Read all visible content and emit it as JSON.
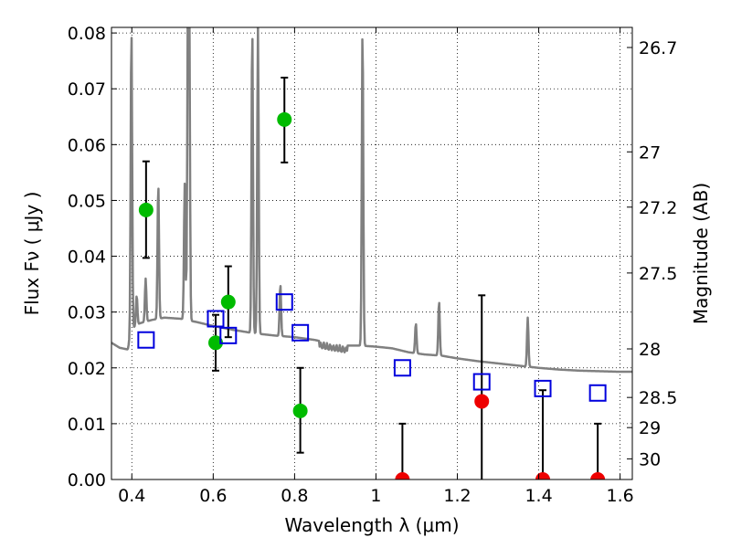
{
  "chart_data": {
    "type": "scatter",
    "title": "",
    "xlabel": "Wavelength  λ (μm)",
    "ylabel": "Flux  Fν  ( μJy )",
    "y2label": "Magnitude (AB)",
    "xlim": [
      0.35,
      1.63
    ],
    "ylim": [
      0.0,
      0.081
    ],
    "grid": true,
    "x_ticks": [
      0.4,
      0.6,
      0.8,
      1.0,
      1.2,
      1.4,
      1.6
    ],
    "x_tick_labels": [
      "0.4",
      "0.6",
      "0.8",
      "1",
      "1.2",
      "1.4",
      "1.6"
    ],
    "y_ticks": [
      0.0,
      0.01,
      0.02,
      0.03,
      0.04,
      0.05,
      0.06,
      0.07,
      0.08
    ],
    "y_tick_labels": [
      "0.00",
      "0.01",
      "0.02",
      "0.03",
      "0.04",
      "0.05",
      "0.06",
      "0.07",
      "0.08"
    ],
    "y2_ticks": [
      {
        "label": "26.7",
        "flux": 0.0774
      },
      {
        "label": "27",
        "flux": 0.0587
      },
      {
        "label": "27.2",
        "flux": 0.0488
      },
      {
        "label": "27.5",
        "flux": 0.037
      },
      {
        "label": "28",
        "flux": 0.0234
      },
      {
        "label": "28.5",
        "flux": 0.0147
      },
      {
        "label": "29",
        "flux": 0.0093
      },
      {
        "label": "30",
        "flux": 0.0037
      }
    ],
    "series": [
      {
        "marker": "circle",
        "color": "#00bb00",
        "points": [
          {
            "x": 0.435,
            "y": 0.0483,
            "err_low": 0.0397,
            "err_high": 0.057
          },
          {
            "x": 0.606,
            "y": 0.0245,
            "err_low": 0.0195,
            "err_high": 0.0295
          },
          {
            "x": 0.637,
            "y": 0.0318,
            "err_low": 0.0255,
            "err_high": 0.0382
          },
          {
            "x": 0.775,
            "y": 0.0645,
            "err_low": 0.0568,
            "err_high": 0.072
          },
          {
            "x": 0.814,
            "y": 0.0123,
            "err_low": 0.0048,
            "err_high": 0.02
          }
        ]
      },
      {
        "marker": "circle",
        "color": "#ee0000",
        "points": [
          {
            "x": 1.065,
            "y": 0.0,
            "err_low": 0.0,
            "err_high": 0.01
          },
          {
            "x": 1.26,
            "y": 0.014,
            "err_low": 0.0,
            "err_high": 0.033
          },
          {
            "x": 1.41,
            "y": 0.0,
            "err_low": 0.0,
            "err_high": 0.016
          },
          {
            "x": 1.545,
            "y": 0.0,
            "err_low": 0.0,
            "err_high": 0.01
          }
        ]
      },
      {
        "marker": "open-square",
        "color": "#0000dd",
        "points": [
          {
            "x": 0.435,
            "y": 0.025
          },
          {
            "x": 0.606,
            "y": 0.0288
          },
          {
            "x": 0.637,
            "y": 0.0258
          },
          {
            "x": 0.775,
            "y": 0.0318
          },
          {
            "x": 0.814,
            "y": 0.0263
          },
          {
            "x": 1.065,
            "y": 0.02
          },
          {
            "x": 1.26,
            "y": 0.0175
          },
          {
            "x": 1.41,
            "y": 0.0163
          },
          {
            "x": 1.545,
            "y": 0.0155
          }
        ]
      },
      {
        "type": "line",
        "color": "#808080",
        "continuum": [
          [
            0.35,
            0.0245
          ],
          [
            0.37,
            0.0236
          ],
          [
            0.39,
            0.0233
          ],
          [
            0.4,
            0.027
          ],
          [
            0.42,
            0.028
          ],
          [
            0.45,
            0.0286
          ],
          [
            0.48,
            0.029
          ],
          [
            0.52,
            0.0288
          ],
          [
            0.56,
            0.0282
          ],
          [
            0.6,
            0.0275
          ],
          [
            0.65,
            0.0268
          ],
          [
            0.7,
            0.0262
          ],
          [
            0.75,
            0.0258
          ],
          [
            0.8,
            0.0255
          ],
          [
            0.85,
            0.025
          ],
          [
            0.88,
            0.0245
          ],
          [
            0.92,
            0.024
          ],
          [
            0.96,
            0.024
          ],
          [
            1.0,
            0.0238
          ],
          [
            1.04,
            0.0235
          ],
          [
            1.08,
            0.0228
          ],
          [
            1.12,
            0.0224
          ],
          [
            1.16,
            0.0222
          ],
          [
            1.2,
            0.0217
          ],
          [
            1.25,
            0.0212
          ],
          [
            1.3,
            0.0208
          ],
          [
            1.35,
            0.0204
          ],
          [
            1.4,
            0.02
          ],
          [
            1.45,
            0.0197
          ],
          [
            1.5,
            0.0195
          ],
          [
            1.55,
            0.0194
          ],
          [
            1.6,
            0.0193
          ],
          [
            1.63,
            0.0193
          ]
        ],
        "emission_lines": [
          {
            "x": 0.399,
            "peak": 0.081
          },
          {
            "x": 0.412,
            "peak": 0.033
          },
          {
            "x": 0.434,
            "peak": 0.036
          },
          {
            "x": 0.465,
            "peak": 0.053
          },
          {
            "x": 0.53,
            "peak": 0.053
          },
          {
            "x": 0.538,
            "peak": 0.081
          },
          {
            "x": 0.541,
            "peak": 0.081
          },
          {
            "x": 0.696,
            "peak": 0.081
          },
          {
            "x": 0.71,
            "peak": 0.081
          },
          {
            "x": 0.765,
            "peak": 0.035
          },
          {
            "x": 0.967,
            "peak": 0.081
          },
          {
            "x": 1.098,
            "peak": 0.028
          },
          {
            "x": 1.155,
            "peak": 0.032
          },
          {
            "x": 1.373,
            "peak": 0.029
          }
        ]
      }
    ]
  }
}
